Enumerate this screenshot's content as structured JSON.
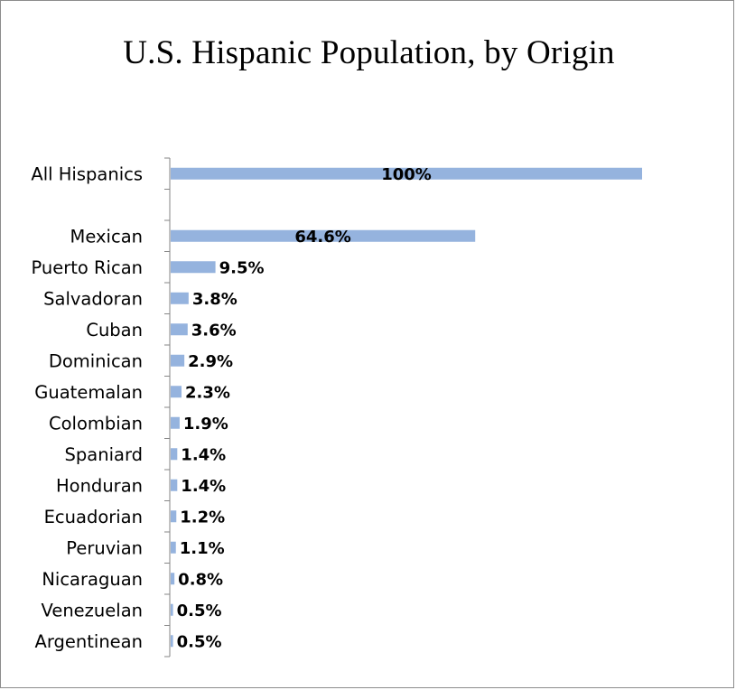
{
  "chart_data": {
    "type": "bar",
    "orientation": "horizontal",
    "title": "U.S. Hispanic Population, by Origin",
    "xlabel": "",
    "ylabel": "",
    "xlim": [
      0,
      100
    ],
    "grid": false,
    "legend": "none",
    "bar_color": "#95b3de",
    "categories": [
      "All Hispanics",
      "",
      "Mexican",
      "Puerto Rican",
      "Salvadoran",
      "Cuban",
      "Dominican",
      "Guatemalan",
      "Colombian",
      "Spaniard",
      "Honduran",
      "Ecuadorian",
      "Peruvian",
      "Nicaraguan",
      "Venezuelan",
      "Argentinean"
    ],
    "values": [
      100,
      null,
      64.6,
      9.5,
      3.8,
      3.6,
      2.9,
      2.3,
      1.9,
      1.4,
      1.4,
      1.2,
      1.1,
      0.8,
      0.5,
      0.5
    ],
    "data_labels": [
      "100%",
      "",
      "64.6%",
      "9.5%",
      "3.8%",
      "3.6%",
      "2.9%",
      "2.3%",
      "1.9%",
      "1.4%",
      "1.4%",
      "1.2%",
      "1.1%",
      "0.8%",
      "0.5%",
      "0.5%"
    ]
  }
}
